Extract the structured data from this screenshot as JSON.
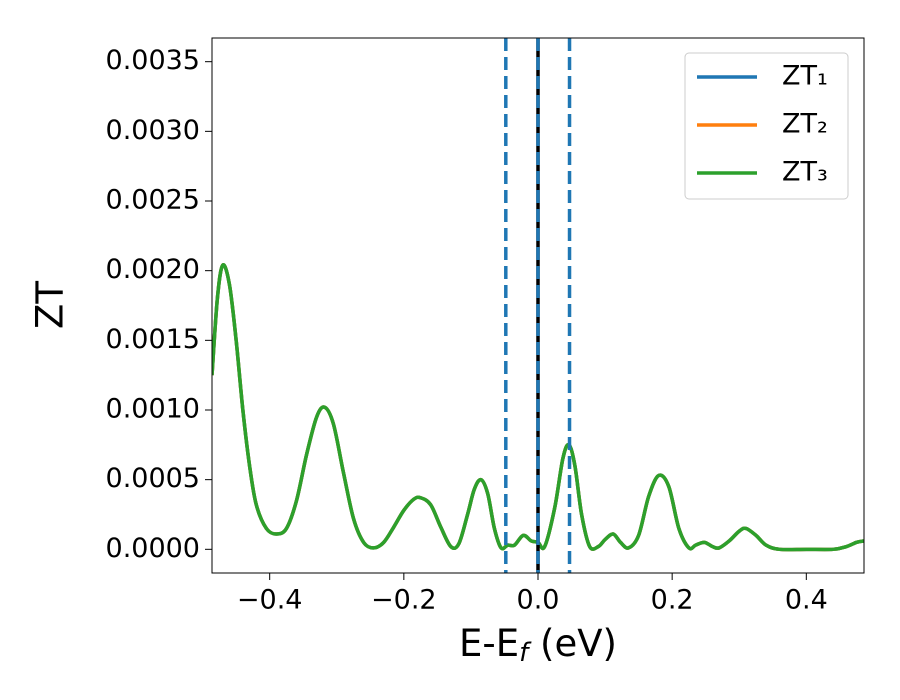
{
  "chart_data": {
    "type": "line",
    "y_label": "ZT",
    "x_label": [
      "E-E",
      "f",
      " (eV)"
    ],
    "xlim": [
      -0.486,
      0.486
    ],
    "ylim": [
      -0.00017,
      0.00367
    ],
    "xticks": [
      {
        "value": -0.4,
        "label": "−0.4"
      },
      {
        "value": -0.2,
        "label": "−0.2"
      },
      {
        "value": 0,
        "label": "0.0"
      },
      0.2,
      0.4
    ],
    "yticks": [
      {
        "value": 0,
        "label": "0.0000"
      },
      {
        "value": 0.0005,
        "label": "0.0005"
      },
      {
        "value": 0.001,
        "label": "0.0010"
      },
      {
        "value": 0.0015,
        "label": "0.0015"
      },
      {
        "value": 0.002,
        "label": "0.0020"
      },
      {
        "value": 0.0025,
        "label": "0.0025"
      },
      {
        "value": 0.003,
        "label": "0.0030"
      },
      {
        "value": 0.0035,
        "label": "0.0035"
      }
    ],
    "legend": "upper right",
    "vlines": [
      {
        "x": 0,
        "color": "#000000",
        "style": "solid"
      },
      {
        "x": -0.048,
        "color": "#1f77b4",
        "style": "dashed"
      },
      {
        "x": 0,
        "color": "#1f77b4",
        "style": "dashed"
      },
      {
        "x": 0.047,
        "color": "#1f77b4",
        "style": "dashed"
      }
    ],
    "x": [
      -0.486,
      -0.478,
      -0.47,
      -0.46,
      -0.45,
      -0.44,
      -0.43,
      -0.42,
      -0.405,
      -0.39,
      -0.375,
      -0.36,
      -0.345,
      -0.33,
      -0.318,
      -0.305,
      -0.29,
      -0.275,
      -0.26,
      -0.245,
      -0.23,
      -0.215,
      -0.2,
      -0.185,
      -0.175,
      -0.16,
      -0.145,
      -0.13,
      -0.118,
      -0.105,
      -0.095,
      -0.085,
      -0.075,
      -0.065,
      -0.055,
      -0.045,
      -0.035,
      -0.022,
      -0.01,
      0,
      0.01,
      0.025,
      0.037,
      0.046,
      0.055,
      0.065,
      0.077,
      0.09,
      0.1,
      0.112,
      0.123,
      0.135,
      0.15,
      0.165,
      0.18,
      0.195,
      0.21,
      0.225,
      0.235,
      0.248,
      0.26,
      0.27,
      0.285,
      0.3,
      0.31,
      0.325,
      0.34,
      0.36,
      0.4,
      0.44,
      0.46,
      0.475,
      0.486
    ],
    "series": [
      {
        "name": "ZT₁",
        "color": "#1f77b4",
        "values": [
          0.00125,
          0.0018,
          0.00204,
          0.0019,
          0.0015,
          0.001,
          0.0006,
          0.00032,
          0.00015,
          0.00011,
          0.00015,
          0.00035,
          0.00068,
          0.00095,
          0.00102,
          0.0009,
          0.00055,
          0.00022,
          5e-05,
          1e-05,
          5e-05,
          0.00016,
          0.00028,
          0.00036,
          0.00037,
          0.00032,
          0.00016,
          2e-05,
          4e-05,
          0.00025,
          0.00043,
          0.0005,
          0.0004,
          0.00015,
          1e-05,
          3e-05,
          3e-05,
          0.0001,
          6e-05,
          5e-05,
          2e-05,
          0.0003,
          0.00065,
          0.00075,
          0.0006,
          0.00025,
          2e-05,
          2e-05,
          7e-05,
          0.00011,
          5e-05,
          1e-05,
          0.0001,
          0.00038,
          0.00053,
          0.00045,
          0.00015,
          1e-05,
          3e-05,
          5e-05,
          2e-05,
          1e-05,
          6e-05,
          0.00013,
          0.00015,
          0.0001,
          3e-05,
          0,
          0,
          0,
          2e-05,
          5e-05,
          6e-05
        ]
      },
      {
        "name": "ZT₂",
        "color": "#ff7f0e",
        "values": [
          0.00125,
          0.0018,
          0.00204,
          0.0019,
          0.0015,
          0.001,
          0.0006,
          0.00032,
          0.00015,
          0.00011,
          0.00015,
          0.00035,
          0.00068,
          0.00095,
          0.00102,
          0.0009,
          0.00055,
          0.00022,
          5e-05,
          1e-05,
          5e-05,
          0.00016,
          0.00028,
          0.00036,
          0.00037,
          0.00032,
          0.00016,
          2e-05,
          4e-05,
          0.00025,
          0.00043,
          0.0005,
          0.0004,
          0.00015,
          1e-05,
          3e-05,
          3e-05,
          0.0001,
          6e-05,
          5e-05,
          2e-05,
          0.0003,
          0.00065,
          0.00075,
          0.0006,
          0.00025,
          2e-05,
          2e-05,
          7e-05,
          0.00011,
          5e-05,
          1e-05,
          0.0001,
          0.00038,
          0.00053,
          0.00045,
          0.00015,
          1e-05,
          3e-05,
          5e-05,
          2e-05,
          1e-05,
          6e-05,
          0.00013,
          0.00015,
          0.0001,
          3e-05,
          0,
          0,
          0,
          2e-05,
          5e-05,
          6e-05
        ]
      },
      {
        "name": "ZT₃",
        "color": "#2ca02c",
        "values": [
          0.00125,
          0.0018,
          0.00204,
          0.0019,
          0.0015,
          0.001,
          0.0006,
          0.00032,
          0.00015,
          0.00011,
          0.00015,
          0.00035,
          0.00068,
          0.00095,
          0.00102,
          0.0009,
          0.00055,
          0.00022,
          5e-05,
          1e-05,
          5e-05,
          0.00016,
          0.00028,
          0.00036,
          0.00037,
          0.00032,
          0.00016,
          2e-05,
          4e-05,
          0.00025,
          0.00043,
          0.0005,
          0.0004,
          0.00015,
          1e-05,
          3e-05,
          3e-05,
          0.0001,
          6e-05,
          5e-05,
          2e-05,
          0.0003,
          0.00065,
          0.00075,
          0.0006,
          0.00025,
          2e-05,
          2e-05,
          7e-05,
          0.00011,
          5e-05,
          1e-05,
          0.0001,
          0.00038,
          0.00053,
          0.00045,
          0.00015,
          1e-05,
          3e-05,
          5e-05,
          2e-05,
          1e-05,
          6e-05,
          0.00013,
          0.00015,
          0.0001,
          3e-05,
          0,
          0,
          0,
          2e-05,
          5e-05,
          6e-05
        ]
      }
    ]
  }
}
